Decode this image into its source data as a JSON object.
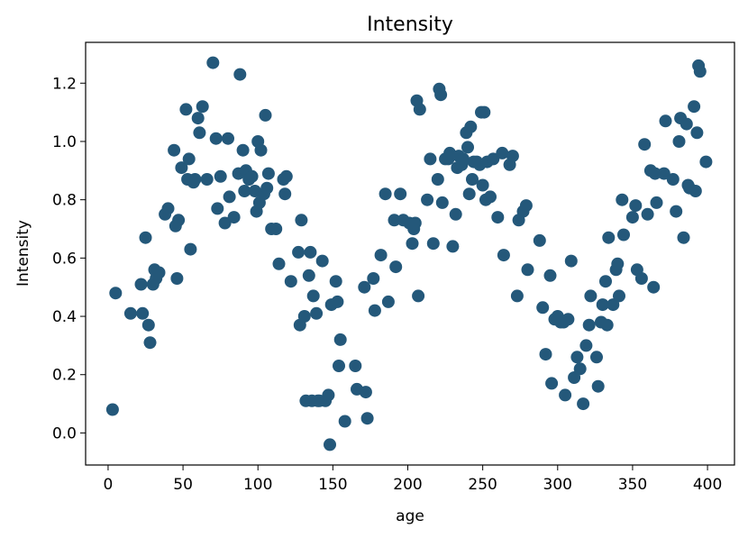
{
  "chart_data": {
    "type": "scatter",
    "title": "Intensity",
    "xlabel": "age",
    "ylabel": "Intensity",
    "xlim": [
      -15,
      418
    ],
    "ylim": [
      -0.11,
      1.34
    ],
    "xticks": [
      0,
      50,
      100,
      150,
      200,
      250,
      300,
      350,
      400
    ],
    "xtick_labels": [
      "0",
      "50",
      "100",
      "150",
      "200",
      "250",
      "300",
      "350",
      "400"
    ],
    "yticks": [
      0.0,
      0.2,
      0.4,
      0.6,
      0.8,
      1.0,
      1.2
    ],
    "ytick_labels": [
      "0.0",
      "0.2",
      "0.4",
      "0.6",
      "0.8",
      "1.0",
      "1.2"
    ],
    "grid": false,
    "marker_color": "#24587a",
    "points": [
      [
        3,
        0.08
      ],
      [
        5,
        0.48
      ],
      [
        15,
        0.41
      ],
      [
        22,
        0.51
      ],
      [
        23,
        0.41
      ],
      [
        25,
        0.67
      ],
      [
        27,
        0.37
      ],
      [
        28,
        0.31
      ],
      [
        30,
        0.51
      ],
      [
        31,
        0.56
      ],
      [
        32,
        0.53
      ],
      [
        34,
        0.55
      ],
      [
        38,
        0.75
      ],
      [
        40,
        0.77
      ],
      [
        44,
        0.97
      ],
      [
        45,
        0.71
      ],
      [
        46,
        0.53
      ],
      [
        47,
        0.73
      ],
      [
        49,
        0.91
      ],
      [
        52,
        1.11
      ],
      [
        53,
        0.87
      ],
      [
        54,
        0.94
      ],
      [
        55,
        0.63
      ],
      [
        57,
        0.86
      ],
      [
        58,
        0.87
      ],
      [
        60,
        1.08
      ],
      [
        61,
        1.03
      ],
      [
        63,
        1.12
      ],
      [
        66,
        0.87
      ],
      [
        70,
        1.27
      ],
      [
        72,
        1.01
      ],
      [
        73,
        0.77
      ],
      [
        75,
        0.88
      ],
      [
        78,
        0.72
      ],
      [
        80,
        1.01
      ],
      [
        81,
        0.81
      ],
      [
        84,
        0.74
      ],
      [
        87,
        0.89
      ],
      [
        88,
        1.23
      ],
      [
        90,
        0.97
      ],
      [
        91,
        0.83
      ],
      [
        92,
        0.9
      ],
      [
        94,
        0.87
      ],
      [
        96,
        0.88
      ],
      [
        98,
        0.83
      ],
      [
        99,
        0.76
      ],
      [
        100,
        1.0
      ],
      [
        101,
        0.79
      ],
      [
        102,
        0.97
      ],
      [
        104,
        0.82
      ],
      [
        105,
        1.09
      ],
      [
        106,
        0.84
      ],
      [
        107,
        0.89
      ],
      [
        109,
        0.7
      ],
      [
        112,
        0.7
      ],
      [
        114,
        0.58
      ],
      [
        117,
        0.87
      ],
      [
        118,
        0.82
      ],
      [
        119,
        0.88
      ],
      [
        122,
        0.52
      ],
      [
        127,
        0.62
      ],
      [
        128,
        0.37
      ],
      [
        129,
        0.73
      ],
      [
        131,
        0.4
      ],
      [
        132,
        0.11
      ],
      [
        134,
        0.54
      ],
      [
        135,
        0.62
      ],
      [
        136,
        0.11
      ],
      [
        137,
        0.47
      ],
      [
        139,
        0.41
      ],
      [
        140,
        0.11
      ],
      [
        141,
        0.11
      ],
      [
        143,
        0.59
      ],
      [
        145,
        0.11
      ],
      [
        147,
        0.13
      ],
      [
        148,
        -0.04
      ],
      [
        149,
        0.44
      ],
      [
        152,
        0.52
      ],
      [
        153,
        0.45
      ],
      [
        154,
        0.23
      ],
      [
        155,
        0.32
      ],
      [
        158,
        0.04
      ],
      [
        165,
        0.23
      ],
      [
        166,
        0.15
      ],
      [
        171,
        0.5
      ],
      [
        172,
        0.14
      ],
      [
        173,
        0.05
      ],
      [
        177,
        0.53
      ],
      [
        178,
        0.42
      ],
      [
        182,
        0.61
      ],
      [
        185,
        0.82
      ],
      [
        187,
        0.45
      ],
      [
        191,
        0.73
      ],
      [
        192,
        0.57
      ],
      [
        195,
        0.82
      ],
      [
        197,
        0.73
      ],
      [
        201,
        0.72
      ],
      [
        203,
        0.65
      ],
      [
        204,
        0.7
      ],
      [
        205,
        0.72
      ],
      [
        206,
        1.14
      ],
      [
        207,
        0.47
      ],
      [
        208,
        1.11
      ],
      [
        213,
        0.8
      ],
      [
        215,
        0.94
      ],
      [
        217,
        0.65
      ],
      [
        220,
        0.87
      ],
      [
        221,
        1.18
      ],
      [
        222,
        1.16
      ],
      [
        223,
        0.79
      ],
      [
        225,
        0.94
      ],
      [
        227,
        0.94
      ],
      [
        228,
        0.96
      ],
      [
        230,
        0.64
      ],
      [
        232,
        0.75
      ],
      [
        233,
        0.91
      ],
      [
        234,
        0.95
      ],
      [
        236,
        0.92
      ],
      [
        237,
        0.94
      ],
      [
        239,
        1.03
      ],
      [
        240,
        0.98
      ],
      [
        241,
        0.82
      ],
      [
        242,
        1.05
      ],
      [
        243,
        0.87
      ],
      [
        244,
        0.93
      ],
      [
        246,
        0.93
      ],
      [
        248,
        0.92
      ],
      [
        249,
        1.1
      ],
      [
        250,
        0.85
      ],
      [
        251,
        1.1
      ],
      [
        252,
        0.8
      ],
      [
        253,
        0.93
      ],
      [
        255,
        0.81
      ],
      [
        257,
        0.94
      ],
      [
        260,
        0.74
      ],
      [
        263,
        0.96
      ],
      [
        264,
        0.61
      ],
      [
        268,
        0.92
      ],
      [
        270,
        0.95
      ],
      [
        273,
        0.47
      ],
      [
        274,
        0.73
      ],
      [
        277,
        0.76
      ],
      [
        279,
        0.78
      ],
      [
        280,
        0.56
      ],
      [
        288,
        0.66
      ],
      [
        290,
        0.43
      ],
      [
        292,
        0.27
      ],
      [
        295,
        0.54
      ],
      [
        296,
        0.17
      ],
      [
        298,
        0.39
      ],
      [
        300,
        0.4
      ],
      [
        302,
        0.38
      ],
      [
        304,
        0.38
      ],
      [
        305,
        0.13
      ],
      [
        307,
        0.39
      ],
      [
        309,
        0.59
      ],
      [
        311,
        0.19
      ],
      [
        313,
        0.26
      ],
      [
        315,
        0.22
      ],
      [
        317,
        0.1
      ],
      [
        319,
        0.3
      ],
      [
        321,
        0.37
      ],
      [
        322,
        0.47
      ],
      [
        326,
        0.26
      ],
      [
        327,
        0.16
      ],
      [
        329,
        0.38
      ],
      [
        330,
        0.44
      ],
      [
        332,
        0.52
      ],
      [
        333,
        0.37
      ],
      [
        334,
        0.67
      ],
      [
        337,
        0.44
      ],
      [
        339,
        0.56
      ],
      [
        340,
        0.58
      ],
      [
        341,
        0.47
      ],
      [
        343,
        0.8
      ],
      [
        344,
        0.68
      ],
      [
        350,
        0.74
      ],
      [
        352,
        0.78
      ],
      [
        353,
        0.56
      ],
      [
        356,
        0.53
      ],
      [
        358,
        0.99
      ],
      [
        360,
        0.75
      ],
      [
        362,
        0.9
      ],
      [
        364,
        0.5
      ],
      [
        365,
        0.89
      ],
      [
        366,
        0.79
      ],
      [
        371,
        0.89
      ],
      [
        372,
        1.07
      ],
      [
        377,
        0.87
      ],
      [
        379,
        0.76
      ],
      [
        381,
        1.0
      ],
      [
        382,
        1.08
      ],
      [
        384,
        0.67
      ],
      [
        386,
        1.06
      ],
      [
        387,
        0.85
      ],
      [
        388,
        0.84
      ],
      [
        391,
        1.12
      ],
      [
        392,
        0.83
      ],
      [
        393,
        1.03
      ],
      [
        394,
        1.26
      ],
      [
        395,
        1.24
      ],
      [
        399,
        0.93
      ]
    ]
  }
}
